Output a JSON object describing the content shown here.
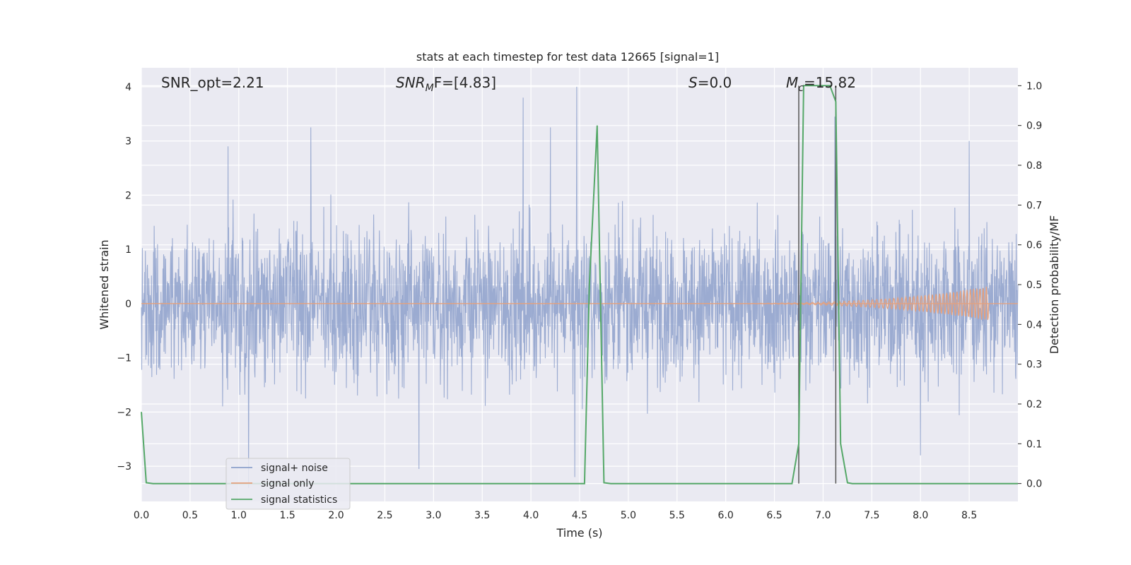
{
  "chart_data": {
    "type": "line",
    "title": "stats at each timestep for test data 12665 [signal=1]",
    "xlabel": "Time (s)",
    "ylabel_left": "Whitened strain",
    "ylabel_right": "Detection probability/MF",
    "xlim": [
      0.0,
      9.0
    ],
    "ylim_left": [
      -3.65,
      4.35
    ],
    "ylim_right": [
      -0.045,
      1.045
    ],
    "x_ticks": [
      "0.0",
      "0.5",
      "1.0",
      "1.5",
      "2.0",
      "2.5",
      "3.0",
      "3.5",
      "4.0",
      "4.5",
      "5.0",
      "5.5",
      "6.0",
      "6.5",
      "7.0",
      "7.5",
      "8.0",
      "8.5"
    ],
    "x_tick_values": [
      0.0,
      0.5,
      1.0,
      1.5,
      2.0,
      2.5,
      3.0,
      3.5,
      4.0,
      4.5,
      5.0,
      5.5,
      6.0,
      6.5,
      7.0,
      7.5,
      8.0,
      8.5
    ],
    "y_left_ticks": [
      "4",
      "3",
      "2",
      "1",
      "0",
      "−1",
      "−2",
      "−3"
    ],
    "y_left_tick_values": [
      4,
      3,
      2,
      1,
      0,
      -1,
      -2,
      -3
    ],
    "y_right_ticks": [
      "1.0",
      "0.9",
      "0.8",
      "0.7",
      "0.6",
      "0.5",
      "0.4",
      "0.3",
      "0.2",
      "0.1",
      "0.0"
    ],
    "y_right_tick_values": [
      1.0,
      0.9,
      0.8,
      0.7,
      0.6,
      0.5,
      0.4,
      0.3,
      0.2,
      0.1,
      0.0
    ],
    "grid": true,
    "legend_position": "lower-left",
    "annotations": {
      "snr_opt": "SNR_opt=2.21",
      "snr_mf_base": "SNR",
      "snr_mf_sub": "M",
      "snr_mf_rest": "F=[4.83]",
      "s_label": "S",
      "s_value": "=0.0",
      "mc_base": "M",
      "mc_sub": "c",
      "mc_value": "=15.82"
    },
    "vertical_lines_x": [
      6.75,
      7.13
    ],
    "series": [
      {
        "name": "signal+ noise",
        "color": "#8da0cb",
        "description": "dense noisy whitened strain trace",
        "typical_envelope": [
          -1.8,
          1.8
        ],
        "peak_points": [
          {
            "x": 0.89,
            "y": 2.9
          },
          {
            "x": 1.74,
            "y": 3.25
          },
          {
            "x": 3.92,
            "y": 3.8
          },
          {
            "x": 4.47,
            "y": 4.0
          },
          {
            "x": 4.2,
            "y": 3.25
          },
          {
            "x": 7.12,
            "y": 3.45
          },
          {
            "x": 8.5,
            "y": 3.0
          },
          {
            "x": 4.45,
            "y": -3.2
          },
          {
            "x": 2.85,
            "y": -3.05
          },
          {
            "x": 1.1,
            "y": -3.4
          },
          {
            "x": 8.0,
            "y": -2.8
          }
        ]
      },
      {
        "name": "signal only",
        "color": "#e5a07c",
        "description": "chirp waveform, near zero then growing amplitude",
        "chirp_start": 5.5,
        "chirp_end": 8.7,
        "max_amplitude": 0.32
      },
      {
        "name": "signal statistics",
        "color": "#55a868",
        "axis": "right",
        "x": [
          0.0,
          0.05,
          0.12,
          4.55,
          4.6,
          4.68,
          4.75,
          4.82,
          6.68,
          6.75,
          6.8,
          7.07,
          7.13,
          7.18,
          7.25,
          7.3,
          9.0
        ],
        "y": [
          0.18,
          0.002,
          0.0,
          0.0,
          0.5,
          0.9,
          0.002,
          0.0,
          0.0,
          0.1,
          1.0,
          1.0,
          0.96,
          0.1,
          0.002,
          0.0,
          0.0
        ]
      }
    ]
  }
}
